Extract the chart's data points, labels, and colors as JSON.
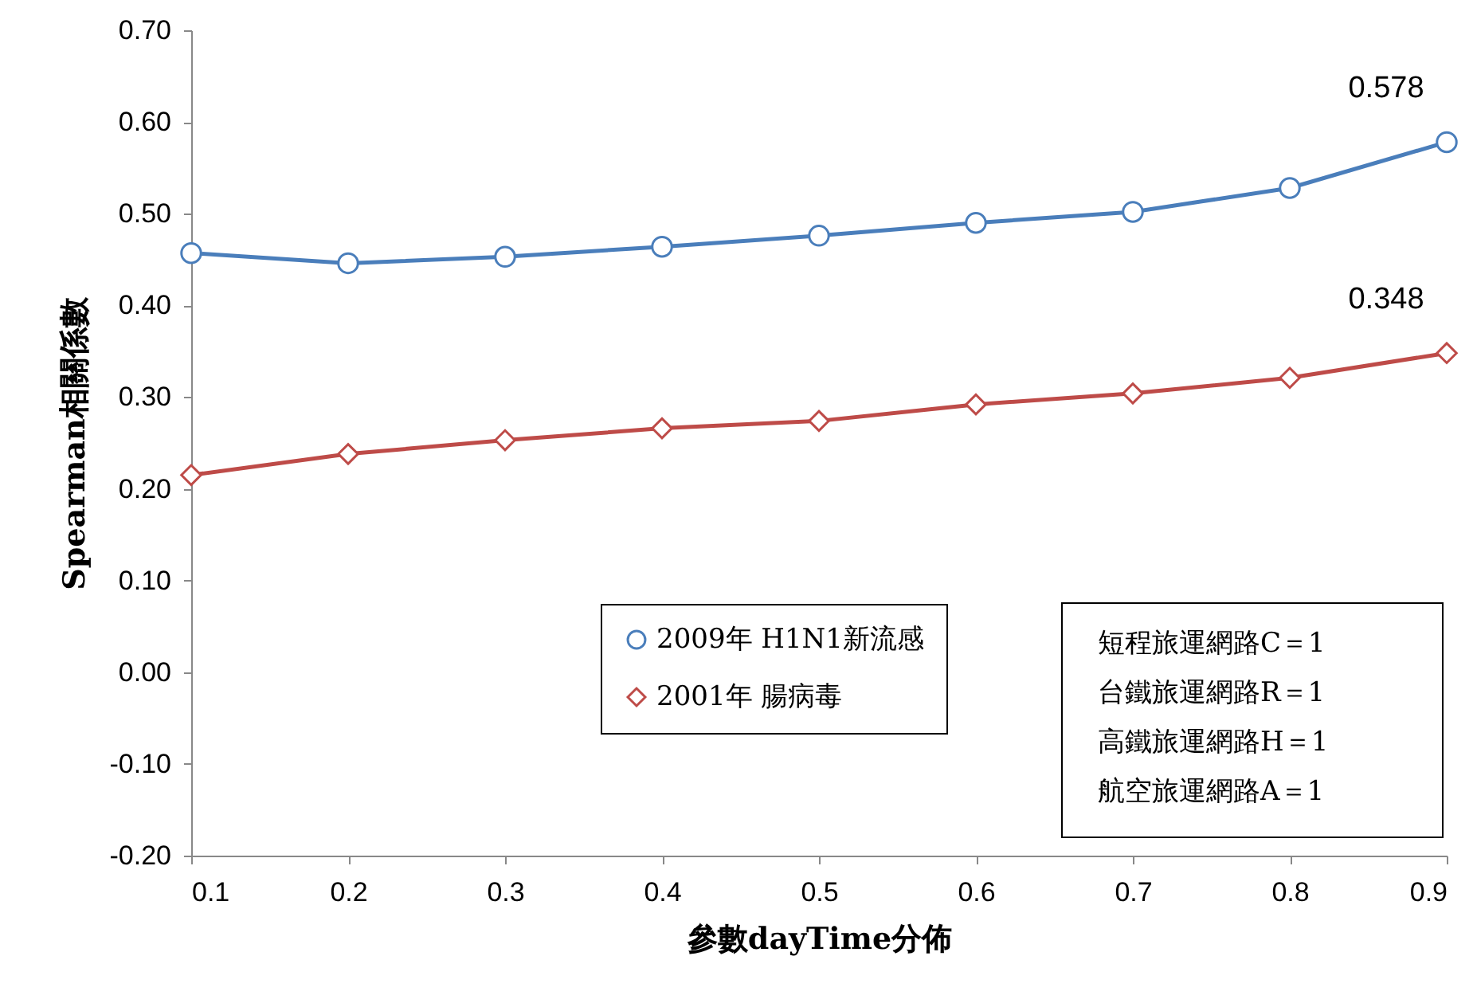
{
  "chart_data": {
    "type": "line",
    "xlabel": "參數dayTime分佈",
    "ylabel": "Spearman相關係數",
    "x": [
      0.1,
      0.2,
      0.3,
      0.4,
      0.5,
      0.6,
      0.7,
      0.8,
      0.9
    ],
    "series": [
      {
        "name": "2009年 H1N1新流感",
        "color": "#4a7ebb",
        "marker": "circle",
        "values": [
          0.457,
          0.446,
          0.453,
          0.464,
          0.476,
          0.49,
          0.502,
          0.528,
          0.578
        ],
        "value_labels": [
          null,
          null,
          null,
          null,
          null,
          null,
          null,
          null,
          "0.578"
        ]
      },
      {
        "name": "2001年 腸病毒",
        "color": "#be4b48",
        "marker": "diamond",
        "values": [
          0.215,
          0.238,
          0.253,
          0.266,
          0.274,
          0.292,
          0.304,
          0.321,
          0.348
        ],
        "value_labels": [
          null,
          null,
          null,
          null,
          null,
          null,
          null,
          null,
          "0.348"
        ]
      }
    ],
    "xlim": [
      0.1,
      0.9
    ],
    "xticks": [
      0.1,
      0.2,
      0.3,
      0.4,
      0.5,
      0.6,
      0.7,
      0.8,
      0.9
    ],
    "ylim": [
      -0.2,
      0.7
    ],
    "yticks": [
      {
        "value": -0.2,
        "label": "-0.20"
      },
      {
        "value": -0.1,
        "label": "-0.10"
      },
      {
        "value": 0,
        "label": "0.00"
      },
      {
        "value": 0.1,
        "label": "0.10"
      },
      {
        "value": 0.2,
        "label": "0.20"
      },
      {
        "value": 0.3,
        "label": "0.30"
      },
      {
        "value": 0.4,
        "label": "0.40"
      },
      {
        "value": 0.5,
        "label": "0.50"
      },
      {
        "value": 0.6,
        "label": "0.60"
      },
      {
        "value": 0.7,
        "label": "0.70"
      }
    ],
    "legend": "bottom right",
    "line_style": "solid",
    "annotations": [
      "短程旅運網路C＝1",
      "台鐵旅運網路R＝1",
      "高鐵旅運網路H＝1",
      "航空旅運網路A＝1"
    ]
  }
}
